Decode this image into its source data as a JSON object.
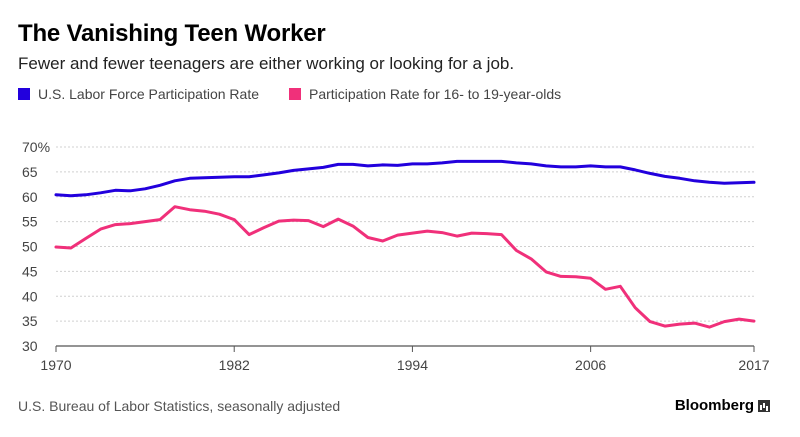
{
  "header": {
    "title": "The Vanishing Teen Worker",
    "subtitle": "Fewer and fewer teenagers are either working or looking for a job."
  },
  "legend": {
    "items": [
      {
        "label": "U.S. Labor Force Participation Rate",
        "color": "#2200dd"
      },
      {
        "label": "Participation Rate for 16- to 19-year-olds",
        "color": "#f0307a"
      }
    ]
  },
  "footer": {
    "source": "U.S. Bureau of Labor Statistics, seasonally adjusted",
    "brand": "Bloomberg"
  },
  "chart_data": {
    "type": "line",
    "title": "The Vanishing Teen Worker",
    "xlabel": "",
    "ylabel": "",
    "xlim": [
      1970,
      2017
    ],
    "ylim": [
      30,
      70
    ],
    "grid": true,
    "x_ticks": [
      1970,
      1982,
      1994,
      2006,
      2017
    ],
    "y_ticks": [
      {
        "value": 30,
        "label": "30"
      },
      {
        "value": 35,
        "label": "35"
      },
      {
        "value": 40,
        "label": "40"
      },
      {
        "value": 45,
        "label": "45"
      },
      {
        "value": 50,
        "label": "50"
      },
      {
        "value": 55,
        "label": "55"
      },
      {
        "value": 60,
        "label": "60"
      },
      {
        "value": 65,
        "label": "65"
      },
      {
        "value": 70,
        "label": "70%"
      }
    ],
    "x": [
      1970,
      1971,
      1972,
      1973,
      1974,
      1975,
      1976,
      1977,
      1978,
      1979,
      1980,
      1981,
      1982,
      1983,
      1984,
      1985,
      1986,
      1987,
      1988,
      1989,
      1990,
      1991,
      1992,
      1993,
      1994,
      1995,
      1996,
      1997,
      1998,
      1999,
      2000,
      2001,
      2002,
      2003,
      2004,
      2005,
      2006,
      2007,
      2008,
      2009,
      2010,
      2011,
      2012,
      2013,
      2014,
      2015,
      2016,
      2017
    ],
    "series": [
      {
        "name": "U.S. Labor Force Participation Rate",
        "color": "#2200dd",
        "values": [
          60.4,
          60.2,
          60.4,
          60.8,
          61.3,
          61.2,
          61.6,
          62.3,
          63.2,
          63.7,
          63.8,
          63.9,
          64.0,
          64.0,
          64.4,
          64.8,
          65.3,
          65.6,
          65.9,
          66.5,
          66.5,
          66.2,
          66.4,
          66.3,
          66.6,
          66.6,
          66.8,
          67.1,
          67.1,
          67.1,
          67.1,
          66.8,
          66.6,
          66.2,
          66.0,
          66.0,
          66.2,
          66.0,
          66.0,
          65.4,
          64.7,
          64.1,
          63.7,
          63.2,
          62.9,
          62.7,
          62.8,
          62.9
        ]
      },
      {
        "name": "Participation Rate for 16- to 19-year-olds",
        "color": "#f0307a",
        "values": [
          49.9,
          49.7,
          51.6,
          53.5,
          54.4,
          54.6,
          55.0,
          55.4,
          58.0,
          57.4,
          57.1,
          56.5,
          55.4,
          52.4,
          53.8,
          55.1,
          55.3,
          55.2,
          54.0,
          55.5,
          54.1,
          51.8,
          51.1,
          52.3,
          52.7,
          53.1,
          52.8,
          52.1,
          52.7,
          52.6,
          52.4,
          49.2,
          47.5,
          44.9,
          44.0,
          43.9,
          43.6,
          41.4,
          42.0,
          37.7,
          34.9,
          34.0,
          34.4,
          34.6,
          33.8,
          34.9,
          35.4,
          35.0
        ]
      }
    ]
  }
}
